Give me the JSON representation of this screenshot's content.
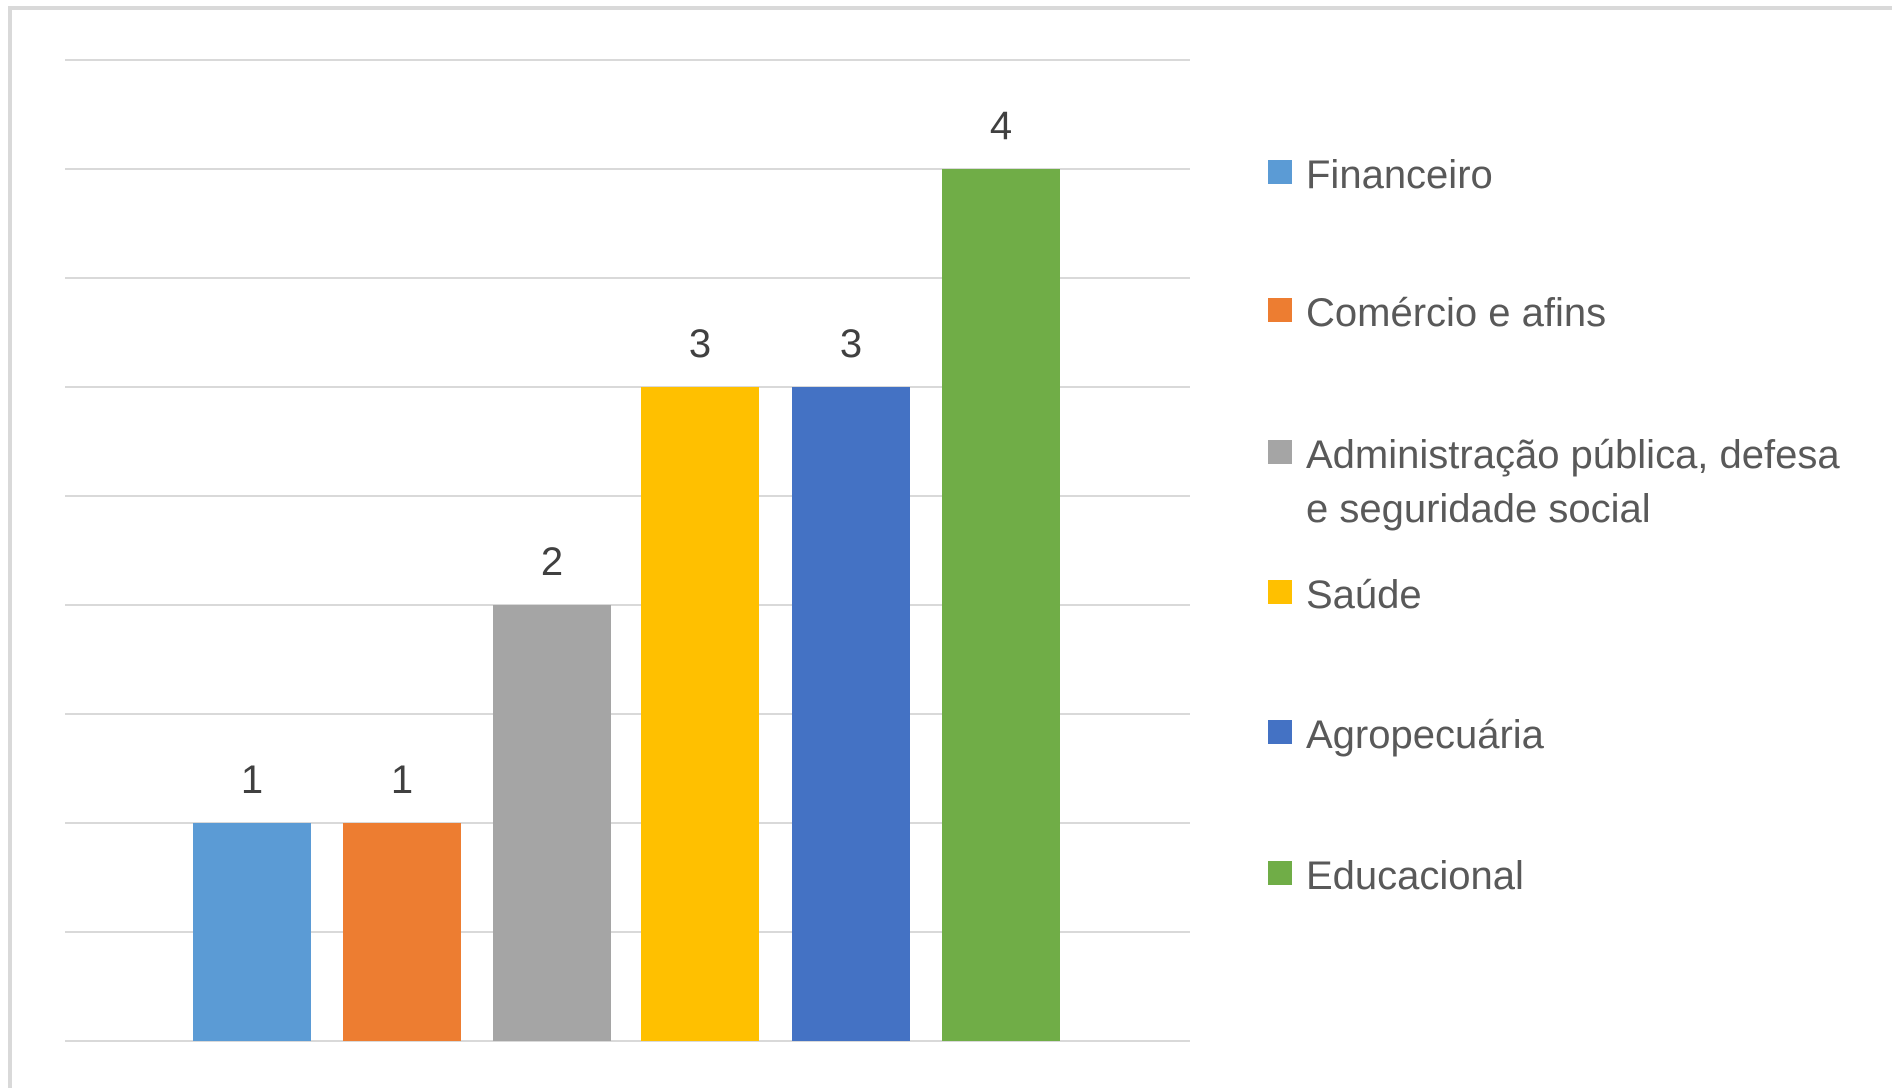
{
  "chart_data": {
    "type": "bar",
    "title": "",
    "xlabel": "",
    "ylabel": "",
    "ylim": [
      0,
      4.5
    ],
    "grid": true,
    "legend_position": "right",
    "categories": [
      "Financeiro",
      "Comércio e afins",
      "Administração pública, defesa e seguridade social",
      "Saúde",
      "Agropecuária",
      "Educacional"
    ],
    "values": [
      1,
      1,
      2,
      3,
      3,
      4
    ],
    "data_labels": [
      "1",
      "1",
      "2",
      "3",
      "3",
      "4"
    ],
    "colors": [
      "#5b9bd5",
      "#ed7d31",
      "#a5a5a5",
      "#ffc000",
      "#4472c4",
      "#70ad47"
    ],
    "legend": [
      {
        "lines": [
          "Financeiro"
        ],
        "color": "#5b9bd5"
      },
      {
        "lines": [
          "Comércio e afins"
        ],
        "color": "#ed7d31"
      },
      {
        "lines": [
          "Administração pública, defesa",
          "e seguridade social"
        ],
        "color": "#a5a5a5"
      },
      {
        "lines": [
          "Saúde"
        ],
        "color": "#ffc000"
      },
      {
        "lines": [
          "Agropecuária"
        ],
        "color": "#4472c4"
      },
      {
        "lines": [
          "Educacional"
        ],
        "color": "#70ad47"
      }
    ]
  }
}
